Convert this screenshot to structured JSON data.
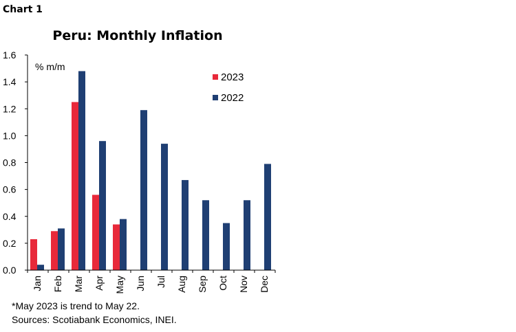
{
  "header": {
    "chart_number": "Chart 1"
  },
  "footnotes": {
    "note": "*May 2023 is trend to May 22.",
    "sources": "Sources: Scotiabank Economics, INEI."
  },
  "colors": {
    "series_2023": "#e8293a",
    "series_2022": "#1f3f73",
    "axis": "#000000"
  },
  "chart_data": {
    "type": "bar",
    "title": "Peru: Monthly Inflation",
    "ylabel": "% m/m",
    "xlabel": "",
    "ylim": [
      0.0,
      1.6
    ],
    "yticks": [
      "0.0",
      "0.2",
      "0.4",
      "0.6",
      "0.8",
      "1.0",
      "1.2",
      "1.4",
      "1.6"
    ],
    "categories": [
      "Jan",
      "Feb",
      "Mar",
      "Apr",
      "May",
      "Jun",
      "Jul",
      "Aug",
      "Sep",
      "Oct",
      "Nov",
      "Dec"
    ],
    "series": [
      {
        "name": "2023",
        "color": "#e8293a",
        "values": [
          0.23,
          0.29,
          1.25,
          0.56,
          0.34,
          null,
          null,
          null,
          null,
          null,
          null,
          null
        ]
      },
      {
        "name": "2022",
        "color": "#1f3f73",
        "values": [
          0.04,
          0.31,
          1.48,
          0.96,
          0.38,
          1.19,
          0.94,
          0.67,
          0.52,
          0.35,
          0.52,
          0.79
        ]
      }
    ],
    "legend": "top-right",
    "grid": false
  }
}
